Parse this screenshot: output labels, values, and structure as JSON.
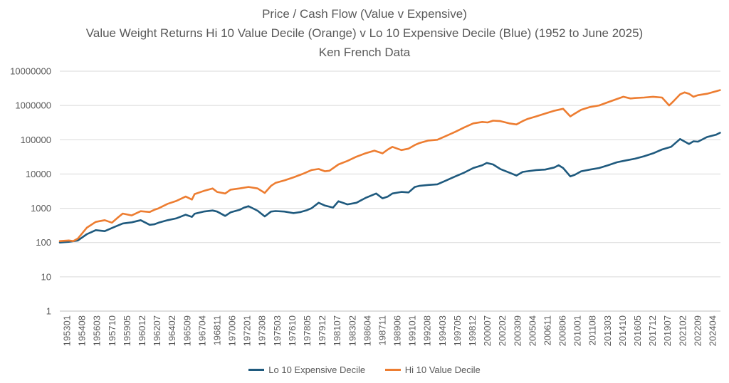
{
  "colors": {
    "expensive": "#1F5A7E",
    "value": "#ED7D31",
    "grid": "#D9D9D9",
    "text": "#595959"
  },
  "chart_data": {
    "type": "line",
    "title": "Price / Cash Flow (Value v Expensive)",
    "subtitle": "Value Weight Returns Hi 10 Value Decile (Orange) v Lo 10 Expensive Decile (Blue) (1952 to June 2025)",
    "source": "Ken French Data",
    "yscale": "log10",
    "ylim": [
      1,
      10000000
    ],
    "yticks": [
      "1",
      "10",
      "100",
      "1000",
      "10000",
      "100000",
      "1000000",
      "10000000"
    ],
    "xlim": [
      1952.0,
      2025.5
    ],
    "xticks": [
      "195301",
      "195408",
      "195603",
      "195710",
      "195905",
      "196012",
      "196207",
      "196402",
      "196509",
      "196704",
      "196811",
      "197006",
      "197201",
      "197308",
      "197503",
      "197610",
      "197805",
      "197912",
      "198107",
      "198302",
      "198604",
      "198711",
      "198906",
      "199101",
      "199208",
      "199403",
      "199705",
      "199812",
      "200007",
      "200202",
      "200309",
      "200504",
      "200611",
      "200806",
      "201001",
      "201108",
      "201303",
      "201410",
      "201605",
      "201712",
      "201907",
      "202102",
      "202209",
      "202404"
    ],
    "legend_position": "bottom",
    "series": [
      {
        "name": "Lo 10 Expensive Decile",
        "color_key": "expensive",
        "x": [
          1952.0,
          1953.0,
          1954.0,
          1955.0,
          1956.0,
          1957.0,
          1958.0,
          1959.0,
          1960.0,
          1961.0,
          1962.0,
          1962.5,
          1963.0,
          1964.0,
          1965.0,
          1966.0,
          1966.7,
          1967.0,
          1968.0,
          1969.0,
          1969.5,
          1970.4,
          1971.0,
          1972.0,
          1972.5,
          1973.0,
          1974.0,
          1974.8,
          1975.5,
          1976.0,
          1977.0,
          1978.0,
          1978.8,
          1979.5,
          1980.0,
          1980.8,
          1981.5,
          1982.4,
          1983.0,
          1984.0,
          1985.0,
          1986.0,
          1987.2,
          1987.9,
          1988.5,
          1989.0,
          1990.0,
          1990.8,
          1991.5,
          1992.0,
          1993.0,
          1994.0,
          1995.0,
          1996.0,
          1997.0,
          1998.0,
          1999.0,
          1999.5,
          2000.2,
          2001.0,
          2002.0,
          2002.8,
          2003.5,
          2004.0,
          2005.0,
          2006.0,
          2007.0,
          2007.5,
          2008.0,
          2008.8,
          2009.3,
          2010.0,
          2011.0,
          2012.0,
          2013.0,
          2014.0,
          2015.0,
          2016.0,
          2017.0,
          2018.0,
          2019.0,
          2020.0,
          2021.0,
          2022.0,
          2022.5,
          2023.0,
          2024.0,
          2025.0,
          2025.45
        ],
        "values": [
          100,
          105,
          115,
          175,
          230,
          215,
          280,
          360,
          390,
          450,
          330,
          340,
          380,
          450,
          510,
          650,
          560,
          690,
          800,
          860,
          800,
          600,
          760,
          900,
          1050,
          1150,
          850,
          580,
          800,
          830,
          800,
          720,
          780,
          880,
          1000,
          1450,
          1200,
          1050,
          1600,
          1300,
          1450,
          2000,
          2700,
          1950,
          2200,
          2700,
          3000,
          2900,
          4200,
          4500,
          4800,
          5000,
          6500,
          8500,
          11000,
          15000,
          18000,
          21000,
          19000,
          14000,
          11000,
          9000,
          11500,
          12000,
          13000,
          13500,
          15500,
          18000,
          15000,
          8500,
          9500,
          12000,
          13500,
          15000,
          18000,
          22000,
          25000,
          28000,
          33000,
          40000,
          52000,
          62000,
          105000,
          75000,
          90000,
          88000,
          120000,
          140000,
          160000
        ]
      },
      {
        "name": "Hi 10 Value Decile",
        "color_key": "value",
        "x": [
          1952.0,
          1953.0,
          1953.5,
          1954.0,
          1955.0,
          1956.0,
          1957.0,
          1957.8,
          1958.5,
          1959.0,
          1960.0,
          1961.0,
          1962.0,
          1962.5,
          1963.0,
          1964.0,
          1965.0,
          1966.0,
          1966.7,
          1967.0,
          1968.0,
          1969.0,
          1969.5,
          1970.4,
          1971.0,
          1972.0,
          1973.0,
          1974.0,
          1974.8,
          1975.5,
          1976.0,
          1977.0,
          1978.0,
          1979.0,
          1980.0,
          1980.8,
          1981.5,
          1982.0,
          1983.0,
          1984.0,
          1985.0,
          1986.0,
          1987.0,
          1987.9,
          1988.5,
          1989.0,
          1990.0,
          1990.8,
          1991.5,
          1992.0,
          1993.0,
          1994.0,
          1995.0,
          1996.0,
          1997.0,
          1998.0,
          1999.0,
          1999.6,
          2000.2,
          2001.0,
          2002.0,
          2002.8,
          2003.5,
          2004.0,
          2005.0,
          2006.0,
          2007.0,
          2007.5,
          2008.0,
          2008.8,
          2009.3,
          2010.0,
          2011.0,
          2012.0,
          2013.0,
          2014.0,
          2014.7,
          2015.5,
          2016.0,
          2017.0,
          2018.0,
          2019.0,
          2019.8,
          2020.3,
          2021.0,
          2021.5,
          2022.0,
          2022.5,
          2023.0,
          2024.0,
          2025.0,
          2025.45
        ],
        "values": [
          110,
          115,
          110,
          130,
          270,
          400,
          450,
          380,
          550,
          700,
          620,
          820,
          780,
          900,
          1000,
          1350,
          1650,
          2200,
          1800,
          2600,
          3200,
          3800,
          3000,
          2700,
          3500,
          3800,
          4200,
          3800,
          2800,
          4500,
          5500,
          6500,
          8000,
          10000,
          13000,
          14000,
          12000,
          12500,
          19000,
          24000,
          32000,
          40000,
          48000,
          40000,
          52000,
          62000,
          50000,
          55000,
          70000,
          80000,
          95000,
          100000,
          130000,
          170000,
          230000,
          300000,
          330000,
          320000,
          360000,
          350000,
          300000,
          280000,
          350000,
          400000,
          480000,
          580000,
          700000,
          750000,
          800000,
          480000,
          580000,
          750000,
          900000,
          1000000,
          1250000,
          1550000,
          1800000,
          1600000,
          1650000,
          1700000,
          1800000,
          1700000,
          1000000,
          1350000,
          2100000,
          2400000,
          2200000,
          1800000,
          2000000,
          2200000,
          2600000,
          2800000
        ]
      }
    ]
  }
}
